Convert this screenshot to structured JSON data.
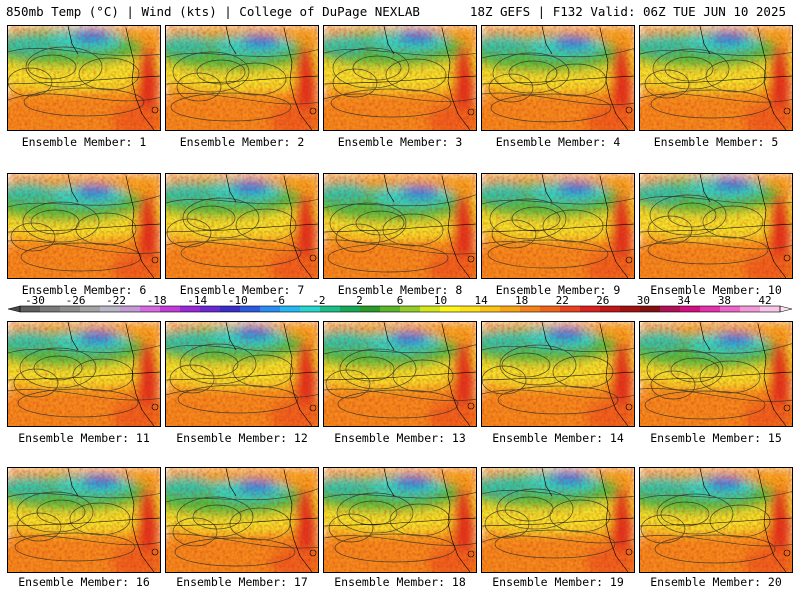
{
  "header": {
    "left": "850mb Temp (°C) | Wind (kts) | College of DuPage NEXLAB",
    "right": "18Z GEFS | F132 Valid: 06Z TUE JUN 10 2025"
  },
  "members": [
    "Ensemble Member: 1",
    "Ensemble Member: 2",
    "Ensemble Member: 3",
    "Ensemble Member: 4",
    "Ensemble Member: 5",
    "Ensemble Member: 6",
    "Ensemble Member: 7",
    "Ensemble Member: 8",
    "Ensemble Member: 9",
    "Ensemble Member: 10",
    "Ensemble Member: 11",
    "Ensemble Member: 12",
    "Ensemble Member: 13",
    "Ensemble Member: 14",
    "Ensemble Member: 15",
    "Ensemble Member: 16",
    "Ensemble Member: 17",
    "Ensemble Member: 18",
    "Ensemble Member: 19",
    "Ensemble Member: 20"
  ],
  "colorbar": {
    "labels": [
      "-30",
      "-26",
      "-22",
      "-18",
      "-14",
      "-10",
      "-6",
      "-2",
      "2",
      "6",
      "10",
      "14",
      "18",
      "22",
      "26",
      "30",
      "34",
      "38",
      "42"
    ],
    "colors": [
      "#606060",
      "#7a7a7a",
      "#8e8e8e",
      "#a4a4a4",
      "#b7b7c8",
      "#c39ad6",
      "#d86ae0",
      "#c23dd8",
      "#9a2ad6",
      "#6a2ad2",
      "#3a2ec8",
      "#2f5ae0",
      "#2b8df0",
      "#25b8f2",
      "#27d6cc",
      "#1cbf8a",
      "#17a85a",
      "#2a9a2a",
      "#5cb52a",
      "#94cc2a",
      "#d4e61e",
      "#fbf51a",
      "#fde01a",
      "#fcc417",
      "#f8a417",
      "#f48419",
      "#ef641c",
      "#e8421f",
      "#d82220",
      "#c01818",
      "#a01212",
      "#821010",
      "#b0105a",
      "#d0107e",
      "#e232ac",
      "#ec66c8",
      "#f29ad8",
      "#f8c6e8"
    ]
  }
}
